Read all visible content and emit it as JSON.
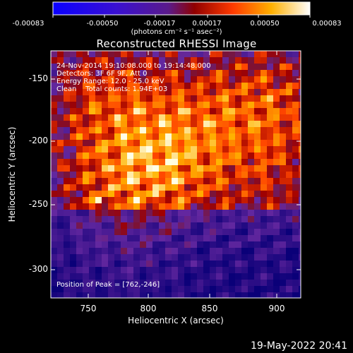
{
  "colorbar": {
    "ticks": [
      "-0.00083",
      "-0.00050",
      "-0.00017",
      "0.00017",
      "0.00050",
      "0.00083"
    ],
    "tick_values": [
      -0.00083,
      -0.0005,
      -0.00017,
      0.00017,
      0.0005,
      0.00083
    ],
    "unit_label": "(photons cm⁻² s⁻¹ asec⁻²)",
    "range": [
      -0.00083,
      0.00083
    ],
    "colors": [
      "#0a00ff",
      "#4b00c8",
      "#7a1aa0",
      "#c80000",
      "#ff6a00",
      "#ffd000",
      "#ffffff"
    ]
  },
  "plot": {
    "title": "Reconstructed RHESSI Image",
    "info_lines": [
      "24-Nov-2014 19:10:08.000 to 19:14:48.000",
      "Detectors: 3F 6F 9F, Att 0",
      "Energy Range: 12.0 - 25.0 keV",
      "Clean    Total counts: 1.94E+03"
    ],
    "peak_label": "Position of Peak = [762,-246]",
    "x_axis": {
      "label": "Heliocentric X (arcsec)",
      "ticks": [
        "750",
        "800",
        "850",
        "900"
      ],
      "tick_values": [
        750,
        800,
        850,
        900
      ],
      "range": [
        725,
        915
      ]
    },
    "y_axis": {
      "label": "Heliocentric Y (arcsec)",
      "ticks": [
        "-150",
        "-200",
        "-250",
        "-300"
      ],
      "tick_values": [
        -150,
        -200,
        -250,
        -300
      ],
      "range": [
        -323,
        -128
      ]
    }
  },
  "timestamp": "19-May-2022 20:41"
}
